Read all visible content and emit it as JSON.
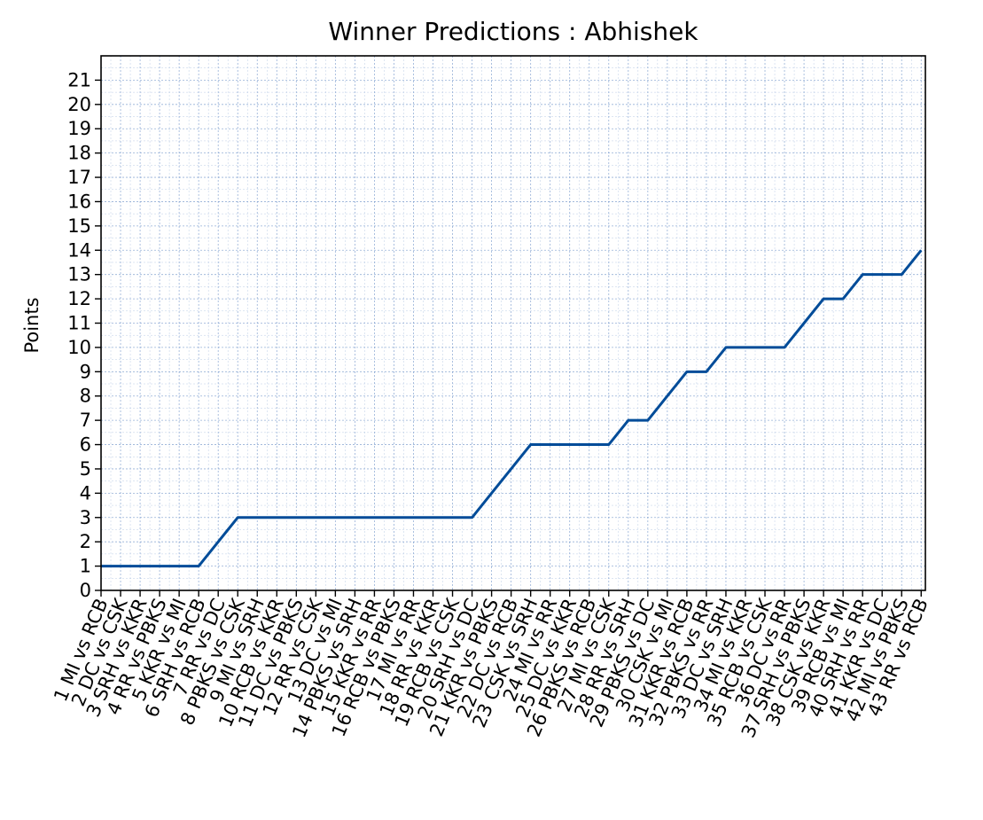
{
  "chart_data": {
    "type": "line",
    "title": "Winner Predictions : Abhishek",
    "xlabel": "",
    "ylabel": "Points",
    "ylim": [
      0,
      22
    ],
    "yticks": [
      0,
      1,
      2,
      3,
      4,
      5,
      6,
      7,
      8,
      9,
      10,
      11,
      12,
      13,
      14,
      15,
      16,
      17,
      18,
      19,
      20,
      21
    ],
    "grid": true,
    "line_color": "#004c99",
    "grid_color": "#6a8fc7",
    "categories": [
      "1 MI vs RCB",
      "2 DC vs CSK",
      "3 SRH vs KKR",
      "4 RR vs PBKS",
      "5 KKR vs MI",
      "6 SRH vs RCB",
      "7 RR vs DC",
      "8 PBKS vs CSK",
      "9 MI vs SRH",
      "10 RCB vs KKR",
      "11 DC vs PBKS",
      "12 RR vs CSK",
      "13 DC vs MI",
      "14 PBKS vs SRH",
      "15 KKR vs RR",
      "16 RCB vs PBKS",
      "17 MI vs RR",
      "18 RR vs KKR",
      "19 RCB vs CSK",
      "20 SRH vs DC",
      "21 KKR vs PBKS",
      "22 DC vs RCB",
      "23 CSK vs SRH",
      "24 MI vs RR",
      "25 DC vs KKR",
      "26 PBKS vs RCB",
      "27 MI vs CSK",
      "28 RR vs SRH",
      "29 PBKS vs DC",
      "30 CSK vs MI",
      "31 KKR vs RCB",
      "32 PBKS vs RR",
      "33 DC vs SRH",
      "34 MI vs KKR",
      "35 RCB vs CSK",
      "36 DC vs RR",
      "37 SRH vs PBKS",
      "38 CSK vs KKR",
      "39 RCB vs MI",
      "40 SRH vs RR",
      "41 KKR vs DC",
      "42 MI vs PBKS",
      "43 RR vs RCB"
    ],
    "values": [
      1,
      1,
      1,
      1,
      1,
      1,
      2,
      3,
      3,
      3,
      3,
      3,
      3,
      3,
      3,
      3,
      3,
      3,
      3,
      3,
      4,
      5,
      6,
      6,
      6,
      6,
      6,
      7,
      7,
      8,
      9,
      9,
      10,
      10,
      10,
      10,
      11,
      12,
      12,
      13,
      13,
      13,
      14
    ]
  }
}
